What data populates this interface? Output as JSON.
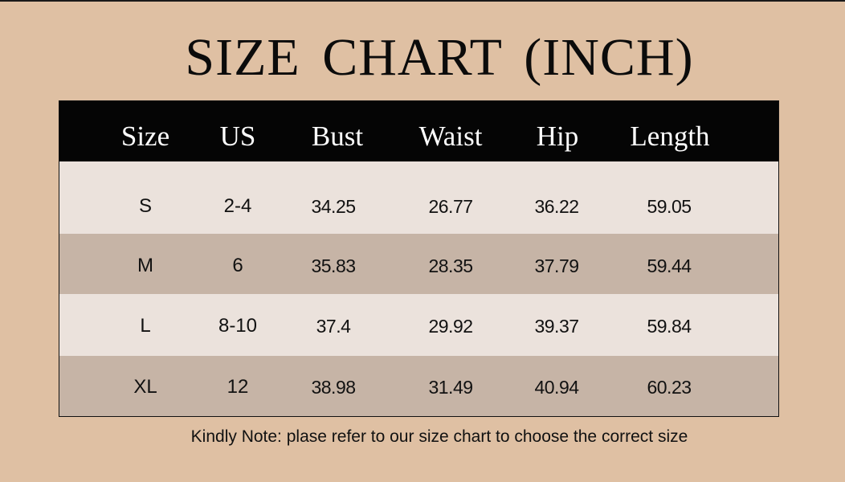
{
  "title": "SIZE  CHART (INCH)",
  "table": {
    "headers": [
      "Size",
      "US",
      "Bust",
      "Waist",
      "Hip",
      "Length"
    ],
    "rows": [
      [
        "S",
        "2-4",
        "34.25",
        "26.77",
        "36.22",
        "59.05"
      ],
      [
        "M",
        "6",
        "35.83",
        "28.35",
        "37.79",
        "59.44"
      ],
      [
        "L",
        "8-10",
        "37.4",
        "29.92",
        "39.37",
        "59.84"
      ],
      [
        "XL",
        "12",
        "38.98",
        "31.49",
        "40.94",
        "60.23"
      ]
    ]
  },
  "note": "Kindly Note: plase refer to our size chart to choose the correct size",
  "colors": {
    "background": "#dfc0a3",
    "header": "#050505",
    "row_light": "#ebe2dc",
    "row_dark": "#c6b4a6"
  }
}
